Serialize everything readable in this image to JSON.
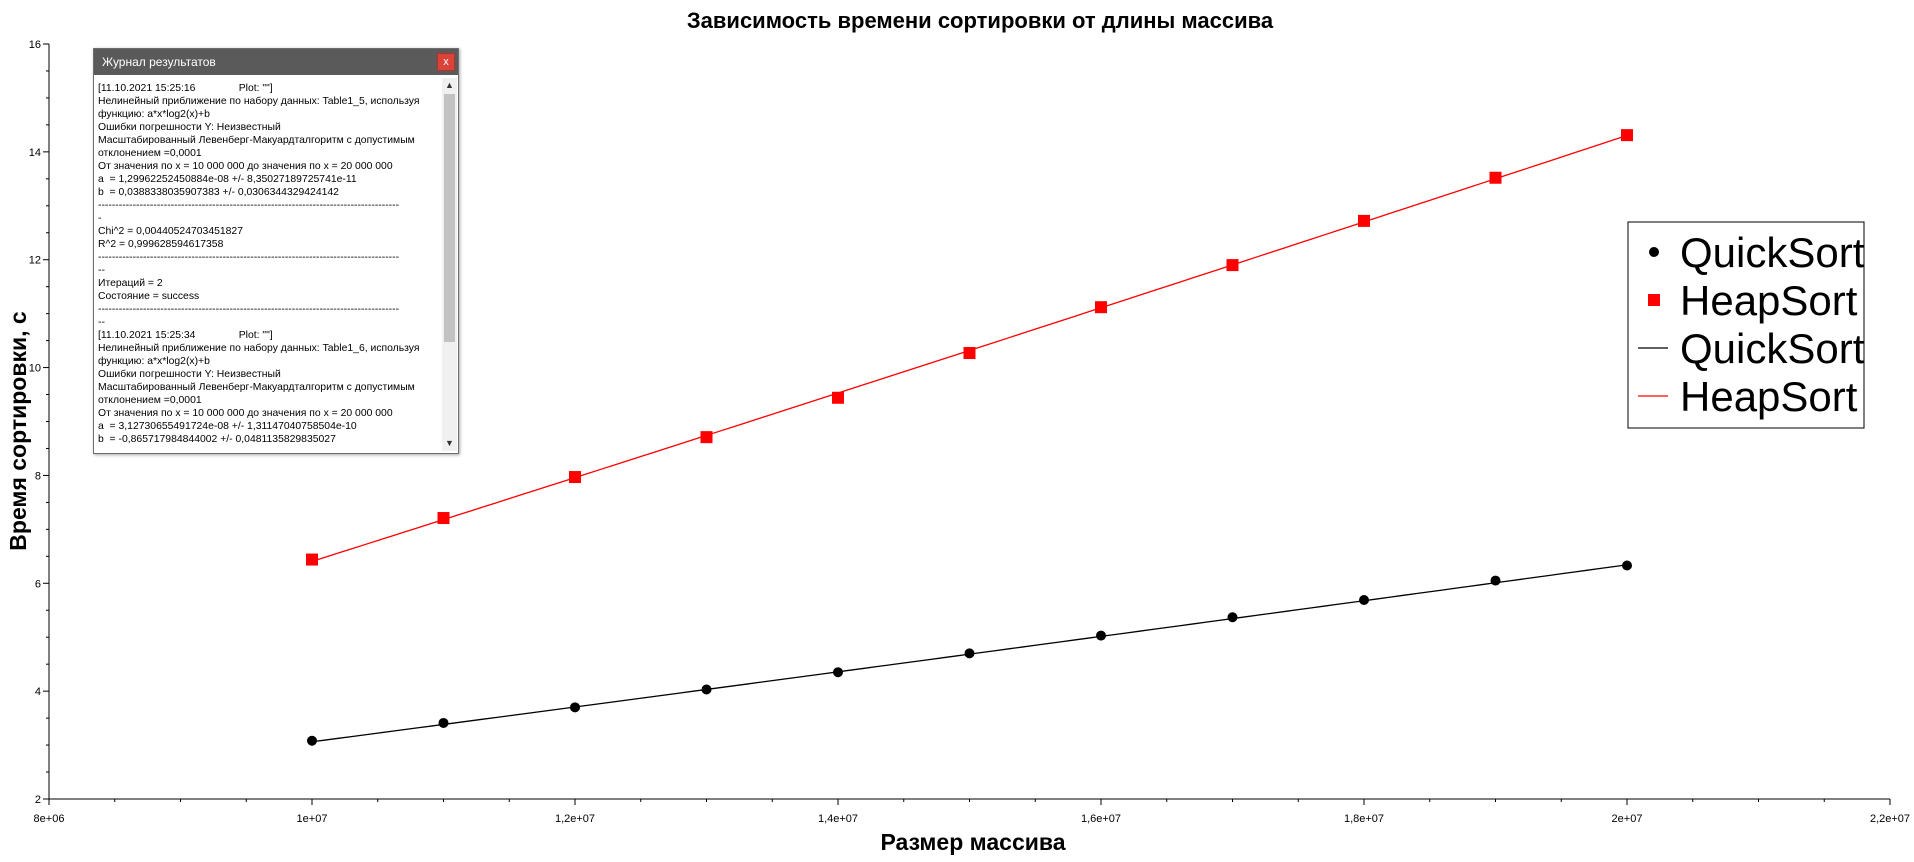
{
  "chart_data": {
    "type": "scatter",
    "title": "Зависимость времени сортировки от длины массива",
    "xlabel": "Размер массива",
    "ylabel": "Время сортировки, с",
    "xlim": [
      8000000,
      22000000
    ],
    "ylim": [
      2,
      16
    ],
    "x_ticks": [
      {
        "value": 8000000,
        "label": "8e+06"
      },
      {
        "value": 10000000,
        "label": "1e+07"
      },
      {
        "value": 12000000,
        "label": "1,2e+07"
      },
      {
        "value": 14000000,
        "label": "1,4e+07"
      },
      {
        "value": 16000000,
        "label": "1,6e+07"
      },
      {
        "value": 18000000,
        "label": "1,8e+07"
      },
      {
        "value": 20000000,
        "label": "2e+07"
      },
      {
        "value": 22000000,
        "label": "2,2e+07"
      }
    ],
    "y_ticks": [
      {
        "value": 2,
        "label": "2"
      },
      {
        "value": 4,
        "label": "4"
      },
      {
        "value": 6,
        "label": "6"
      },
      {
        "value": 8,
        "label": "8"
      },
      {
        "value": 10,
        "label": "10"
      },
      {
        "value": 12,
        "label": "12"
      },
      {
        "value": 14,
        "label": "14"
      },
      {
        "value": 16,
        "label": "16"
      }
    ],
    "x": [
      10000000,
      11000000,
      12000000,
      13000000,
      14000000,
      15000000,
      16000000,
      17000000,
      18000000,
      19000000,
      20000000
    ],
    "series": [
      {
        "name": "QuickSort",
        "kind": "points",
        "marker": "circle",
        "color": "#000000",
        "values": [
          3.08,
          3.41,
          3.7,
          4.03,
          4.35,
          4.7,
          5.03,
          5.37,
          5.69,
          6.05,
          6.33
        ]
      },
      {
        "name": "HeapSort",
        "kind": "points",
        "marker": "square",
        "color": "#ff0000",
        "values": [
          6.44,
          7.21,
          7.97,
          8.71,
          9.44,
          10.27,
          11.12,
          11.9,
          12.72,
          13.52,
          14.31
        ]
      },
      {
        "name": "QuickSort",
        "kind": "fit",
        "color": "#000000",
        "fit": {
          "a": 1.29962252450884e-08,
          "b": 0.0388338035907383
        }
      },
      {
        "name": "HeapSort",
        "kind": "fit",
        "color": "#ff0000",
        "fit": {
          "a": 3.12730655491724e-08,
          "b": -0.865717984844002
        }
      }
    ],
    "legend_position": "right"
  },
  "log_window": {
    "title": "Журнал результатов",
    "close_label": "x",
    "scroll_up": "▲",
    "scroll_down": "▼",
    "lines": [
      "[11.10.2021 15:25:16               Plot: \"\"]",
      "Нелинейный приближение по набору данных: Table1_5, используя",
      "функцию: a*x*log2(x)+b",
      "Ошибки погрешности Y: Неизвестный",
      "Масштабированный Левенберг-Макуардталгоритм с допустимым",
      "отклонением =0,0001",
      "От значения по x = 10 000 000 до значения по x = 20 000 000",
      "a  = 1,29962252450884e-08 +/- 8,35027189725741e-11",
      "b  = 0,0388338035907383 +/- 0,0306344329424142",
      "---------------------------------------------------------------------------------------",
      "-",
      "Chi^2 = 0,00440524703451827",
      "R^2 = 0,999628594617358",
      "---------------------------------------------------------------------------------------",
      "--",
      "Итераций = 2",
      "Состояние = success",
      "---------------------------------------------------------------------------------------",
      "--",
      "[11.10.2021 15:25:34               Plot: \"\"]",
      "Нелинейный приближение по набору данных: Table1_6, используя",
      "функцию: a*x*log2(x)+b",
      "Ошибки погрешности Y: Неизвестный",
      "Масштабированный Левенберг-Макуардталгоритм с допустимым",
      "отклонением =0,0001",
      "От значения по x = 10 000 000 до значения по x = 20 000 000",
      "a  = 3,12730655491724e-08 +/- 1,31147040758504e-10",
      "b  = -0,865717984844002 +/- 0,0481135829835027"
    ]
  }
}
